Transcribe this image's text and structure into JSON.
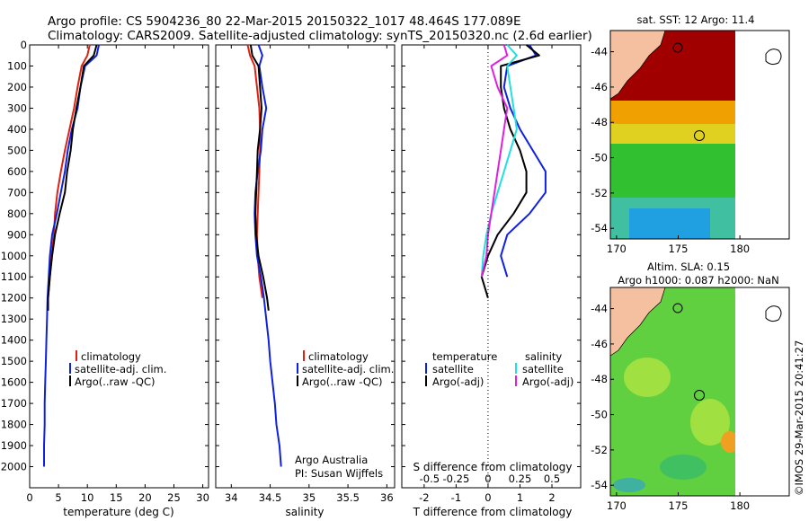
{
  "header": {
    "line1": "Argo profile: CS 5904236_80 22-Mar-2015 20150322_1017 48.464S 177.089E",
    "line2": "Climatology: CARS2009. Satellite-adjusted climatology: synTS_20150320.nc (2.6d earlier)"
  },
  "legend": {
    "climatology": "climatology",
    "satellite_adj": "satellite-adj. clim.",
    "argo": "Argo(..raw -QC)",
    "temperature": "temperature",
    "salinity": "salinity",
    "satellite": "satellite",
    "argo_adj": "Argo(-adj)"
  },
  "credit": {
    "line1": "Argo Australia",
    "line2": "PI: Susan Wijffels"
  },
  "maps": {
    "sst_title": "sat. SST: 12 Argo: 11.4",
    "sla_title1": "Altim. SLA: 0.15",
    "sla_title2": "Argo h1000: 0.087 h2000: NaN",
    "watermark": "©IMOS 29-Mar-2015 20:41:27"
  },
  "colors": {
    "climatology": "#e02010",
    "satellite_adj": "#1020e0",
    "argo": "#000000",
    "sat_salinity": "#20e0e0",
    "argo_salinity": "#e020e0",
    "land": "#f4c0a0",
    "sst_hot": "#a00000",
    "sst_mid": "#f0a000",
    "sst_green": "#30c030",
    "sst_cool": "#20a0e0",
    "sla_green": "#60d040"
  },
  "chart_data": [
    {
      "type": "line",
      "xlabel": "temperature (deg C)",
      "xlim": [
        0,
        31
      ],
      "ylim": [
        0,
        2100
      ],
      "xticks": [
        0,
        5,
        10,
        15,
        20,
        25,
        30
      ],
      "yticks": [
        0,
        100,
        200,
        300,
        400,
        500,
        600,
        700,
        800,
        900,
        1000,
        1100,
        1200,
        1300,
        1400,
        1500,
        1600,
        1700,
        1800,
        1900,
        2000
      ],
      "series": [
        {
          "name": "climatology",
          "color": "#e02010",
          "points": [
            [
              10.4,
              0
            ],
            [
              10,
              50
            ],
            [
              9,
              100
            ],
            [
              8.3,
              200
            ],
            [
              7.7,
              300
            ],
            [
              6.9,
              400
            ],
            [
              6.1,
              500
            ],
            [
              5.4,
              600
            ],
            [
              4.8,
              700
            ],
            [
              4.4,
              800
            ],
            [
              4.2,
              900
            ],
            [
              3.8,
              1000
            ],
            [
              3.5,
              1100
            ],
            [
              3.2,
              1200
            ],
            [
              3.2,
              1260
            ]
          ]
        },
        {
          "name": "satellite-adj. clim.",
          "color": "#1020e0",
          "points": [
            [
              12,
              0
            ],
            [
              11.6,
              50
            ],
            [
              9.6,
              100
            ],
            [
              8.8,
              200
            ],
            [
              8.3,
              300
            ],
            [
              7.3,
              400
            ],
            [
              6.6,
              500
            ],
            [
              6.1,
              600
            ],
            [
              5.4,
              700
            ],
            [
              4.7,
              800
            ],
            [
              3.9,
              900
            ],
            [
              3.5,
              1000
            ],
            [
              3.3,
              1100
            ],
            [
              3.1,
              1200
            ],
            [
              3.0,
              1300
            ],
            [
              2.9,
              1400
            ],
            [
              2.8,
              1500
            ],
            [
              2.7,
              1600
            ],
            [
              2.6,
              1700
            ],
            [
              2.6,
              1800
            ],
            [
              2.5,
              1900
            ],
            [
              2.5,
              2000
            ]
          ]
        },
        {
          "name": "Argo(..raw -QC)",
          "color": "#000000",
          "points": [
            [
              11.6,
              0
            ],
            [
              11.1,
              50
            ],
            [
              9.4,
              100
            ],
            [
              8.8,
              200
            ],
            [
              8.1,
              300
            ],
            [
              7.5,
              400
            ],
            [
              7.1,
              500
            ],
            [
              6.5,
              600
            ],
            [
              6.1,
              700
            ],
            [
              5.2,
              800
            ],
            [
              4.4,
              900
            ],
            [
              3.9,
              1000
            ],
            [
              3.5,
              1100
            ],
            [
              3.2,
              1200
            ],
            [
              3.2,
              1260
            ]
          ]
        }
      ]
    },
    {
      "type": "line",
      "xlabel": "salinity",
      "xlim": [
        33.8,
        36.1
      ],
      "ylim": [
        0,
        2100
      ],
      "xticks": [
        34,
        34.5,
        35,
        35.5,
        36
      ],
      "series": [
        {
          "name": "climatology",
          "color": "#e02010",
          "points": [
            [
              34.21,
              0
            ],
            [
              34.24,
              50
            ],
            [
              34.3,
              100
            ],
            [
              34.33,
              200
            ],
            [
              34.36,
              300
            ],
            [
              34.37,
              400
            ],
            [
              34.37,
              500
            ],
            [
              34.36,
              600
            ],
            [
              34.35,
              700
            ],
            [
              34.34,
              800
            ],
            [
              34.33,
              900
            ],
            [
              34.34,
              1000
            ],
            [
              34.36,
              1100
            ],
            [
              34.4,
              1200
            ]
          ]
        },
        {
          "name": "satellite-adj. clim.",
          "color": "#1020e0",
          "points": [
            [
              34.35,
              0
            ],
            [
              34.4,
              50
            ],
            [
              34.36,
              100
            ],
            [
              34.4,
              200
            ],
            [
              34.45,
              300
            ],
            [
              34.4,
              400
            ],
            [
              34.38,
              500
            ],
            [
              34.34,
              600
            ],
            [
              34.31,
              700
            ],
            [
              34.3,
              800
            ],
            [
              34.31,
              900
            ],
            [
              34.33,
              1000
            ],
            [
              34.38,
              1100
            ],
            [
              34.42,
              1200
            ],
            [
              34.45,
              1300
            ],
            [
              34.48,
              1400
            ],
            [
              34.5,
              1500
            ],
            [
              34.53,
              1600
            ],
            [
              34.56,
              1700
            ],
            [
              34.58,
              1800
            ],
            [
              34.62,
              1900
            ],
            [
              34.64,
              2000
            ]
          ]
        },
        {
          "name": "Argo(..raw -QC)",
          "color": "#000000",
          "points": [
            [
              34.25,
              0
            ],
            [
              34.27,
              50
            ],
            [
              34.35,
              100
            ],
            [
              34.37,
              200
            ],
            [
              34.39,
              300
            ],
            [
              34.37,
              400
            ],
            [
              34.34,
              500
            ],
            [
              34.33,
              600
            ],
            [
              34.32,
              700
            ],
            [
              34.31,
              800
            ],
            [
              34.32,
              900
            ],
            [
              34.35,
              1000
            ],
            [
              34.41,
              1100
            ],
            [
              34.46,
              1200
            ],
            [
              34.48,
              1260
            ]
          ]
        }
      ]
    },
    {
      "type": "line",
      "xlabel": "T difference from climatology",
      "x2label": "S difference from climatology",
      "xlim": [
        -2.7,
        2.9
      ],
      "ylim": [
        0,
        2100
      ],
      "xticks": [
        -2,
        -1,
        0,
        1,
        2
      ],
      "x2ticks": [
        "-0.5",
        "-0.25",
        "0",
        "0.25",
        "0.5"
      ],
      "series": [
        {
          "name": "temperature satellite",
          "color": "#1020e0",
          "points": [
            [
              1.3,
              0
            ],
            [
              1.5,
              50
            ],
            [
              0.6,
              100
            ],
            [
              0.5,
              200
            ],
            [
              0.7,
              300
            ],
            [
              1.0,
              400
            ],
            [
              1.4,
              500
            ],
            [
              1.8,
              600
            ],
            [
              1.8,
              700
            ],
            [
              1.3,
              800
            ],
            [
              0.6,
              900
            ],
            [
              0.4,
              1000
            ],
            [
              0.6,
              1100
            ]
          ]
        },
        {
          "name": "temperature Argo(-adj)",
          "color": "#000000",
          "points": [
            [
              1.2,
              0
            ],
            [
              1.6,
              50
            ],
            [
              0.4,
              100
            ],
            [
              0.4,
              200
            ],
            [
              0.5,
              300
            ],
            [
              0.7,
              400
            ],
            [
              1.0,
              500
            ],
            [
              1.2,
              600
            ],
            [
              1.2,
              700
            ],
            [
              0.8,
              800
            ],
            [
              0.3,
              900
            ],
            [
              0.0,
              1000
            ],
            [
              -0.2,
              1100
            ],
            [
              0.0,
              1200
            ]
          ]
        },
        {
          "name": "salinity satellite",
          "color": "#20e0e0",
          "points": [
            [
              0.6,
              0
            ],
            [
              0.9,
              50
            ],
            [
              0.6,
              100
            ],
            [
              0.7,
              200
            ],
            [
              0.8,
              300
            ],
            [
              0.9,
              400
            ],
            [
              0.7,
              500
            ],
            [
              0.5,
              600
            ],
            [
              0.3,
              700
            ],
            [
              0.1,
              800
            ],
            [
              -0.05,
              900
            ],
            [
              -0.15,
              1000
            ],
            [
              -0.2,
              1100
            ]
          ]
        },
        {
          "name": "salinity Argo(-adj)",
          "color": "#e020e0",
          "points": [
            [
              0.5,
              0
            ],
            [
              0.6,
              50
            ],
            [
              0.1,
              100
            ],
            [
              0.3,
              200
            ],
            [
              0.6,
              300
            ],
            [
              0.5,
              400
            ],
            [
              0.4,
              500
            ],
            [
              0.3,
              600
            ],
            [
              0.2,
              700
            ],
            [
              0.1,
              800
            ],
            [
              0.0,
              900
            ],
            [
              -0.05,
              1000
            ],
            [
              -0.2,
              1100
            ]
          ]
        }
      ]
    }
  ]
}
